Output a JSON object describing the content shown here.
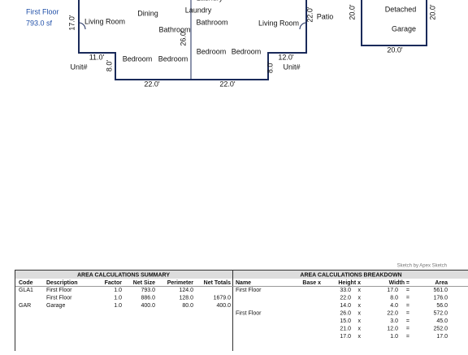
{
  "sketch": {
    "floor_label": "First Floor",
    "floor_area": "793.0 sf",
    "labels": [
      {
        "text": "Laundry"
      },
      {
        "text": "17.0'"
      },
      {
        "text": "Living Room"
      },
      {
        "text": "Dining"
      },
      {
        "text": "Laundry"
      },
      {
        "text": "Bathroom"
      },
      {
        "text": "26.0'"
      },
      {
        "text": "Bathroom"
      },
      {
        "text": "Living Room"
      },
      {
        "text": "22.0'"
      },
      {
        "text": "Patio"
      },
      {
        "text": "11.0'"
      },
      {
        "text": "Unit#"
      },
      {
        "text": "8.0'"
      },
      {
        "text": "Bedroom"
      },
      {
        "text": "Bedroom"
      },
      {
        "text": "Bedroom"
      },
      {
        "text": "Bedroom"
      },
      {
        "text": "12.0'"
      },
      {
        "text": "8.0'"
      },
      {
        "text": "Unit#"
      },
      {
        "text": "22.0'"
      },
      {
        "text": "22.0'"
      }
    ],
    "garage": {
      "left": "20.0'",
      "right": "20.0'",
      "line1": "Detached",
      "line2": "Garage",
      "bottom": "20.0'"
    },
    "credit": "Sketch by Apex Sketch"
  },
  "summary": {
    "title": "AREA CALCULATIONS SUMMARY",
    "headers": [
      "Code",
      "Description",
      "Factor",
      "Net Size",
      "Perimeter",
      "Net Totals"
    ],
    "rows": [
      [
        "GLA1",
        "First Floor",
        "1.0",
        "793.0",
        "124.0",
        null
      ],
      [
        null,
        "First Floor",
        "1.0",
        "886.0",
        "128.0",
        "1679.0"
      ],
      [
        "GAR",
        "Garage",
        "1.0",
        "400.0",
        "80.0",
        "400.0"
      ]
    ]
  },
  "breakdown": {
    "title": "AREA CALCULATIONS BREAKDOWN",
    "headers": [
      "Name",
      "Base  x",
      "Height  x",
      "Width  =",
      "Area"
    ],
    "rows": [
      [
        "First Floor",
        "33.0",
        "x",
        "17.0",
        "=",
        "561.0"
      ],
      [
        null,
        "22.0",
        "x",
        "8.0",
        "=",
        "176.0"
      ],
      [
        null,
        "14.0",
        "x",
        "4.0",
        "=",
        "56.0"
      ],
      [
        "First Floor",
        "26.0",
        "x",
        "22.0",
        "=",
        "572.0"
      ],
      [
        null,
        "15.0",
        "x",
        "3.0",
        "=",
        "45.0"
      ],
      [
        null,
        "21.0",
        "x",
        "12.0",
        "=",
        "252.0"
      ],
      [
        null,
        "17.0",
        "x",
        "1.0",
        "=",
        "17.0"
      ]
    ]
  }
}
